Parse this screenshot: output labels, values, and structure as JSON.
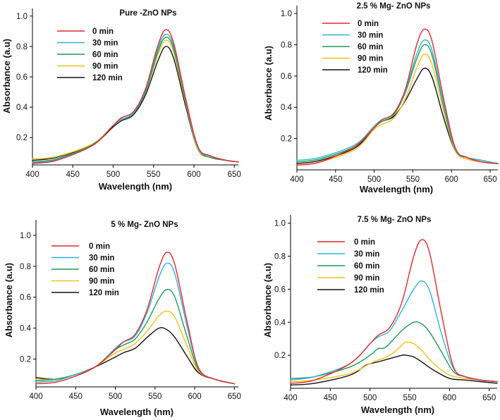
{
  "series_colors": {
    "0 min": "#e8262b",
    "30 min": "#2ab6d8",
    "60 min": "#1f9a55",
    "90 min": "#f2c01a",
    "120 min": "#111111"
  },
  "chart_data": [
    {
      "type": "line",
      "title": "Pure -ZnO NPs",
      "xlabel": "Wavelength (nm)",
      "ylabel": "Absorbance (a.u)",
      "xlim": [
        400,
        655
      ],
      "ylim": [
        0.02,
        1.05
      ],
      "xticks": [
        400,
        450,
        500,
        550,
        600,
        650
      ],
      "yticks": [
        0.2,
        0.4,
        0.6,
        0.8,
        1.0
      ],
      "ytick_labels": [
        "0.2",
        "0.4",
        "0.6",
        "0.8",
        "1.0"
      ],
      "legend": "top-left",
      "series": [
        {
          "name": "0 min",
          "x": [
            400,
            430,
            475,
            500,
            510,
            525,
            540,
            555,
            565,
            575,
            590,
            605,
            620,
            640,
            655
          ],
          "y": [
            0.03,
            0.05,
            0.15,
            0.28,
            0.33,
            0.37,
            0.52,
            0.8,
            0.91,
            0.82,
            0.45,
            0.14,
            0.08,
            0.05,
            0.04
          ]
        },
        {
          "name": "30 min",
          "x": [
            400,
            430,
            475,
            500,
            510,
            525,
            540,
            555,
            565,
            575,
            590,
            605,
            620,
            640,
            655
          ],
          "y": [
            0.035,
            0.055,
            0.15,
            0.28,
            0.32,
            0.36,
            0.51,
            0.78,
            0.88,
            0.8,
            0.44,
            0.13,
            0.08,
            0.05,
            0.04
          ]
        },
        {
          "name": "60 min",
          "x": [
            400,
            430,
            475,
            500,
            510,
            525,
            540,
            555,
            565,
            575,
            590,
            605,
            620,
            640,
            655
          ],
          "y": [
            0.04,
            0.06,
            0.155,
            0.28,
            0.32,
            0.36,
            0.5,
            0.76,
            0.86,
            0.78,
            0.43,
            0.13,
            0.07,
            0.05,
            0.04
          ]
        },
        {
          "name": "90 min",
          "x": [
            400,
            430,
            475,
            500,
            510,
            525,
            540,
            555,
            565,
            575,
            590,
            605,
            620,
            640,
            655
          ],
          "y": [
            0.06,
            0.075,
            0.16,
            0.28,
            0.32,
            0.36,
            0.5,
            0.74,
            0.84,
            0.76,
            0.42,
            0.12,
            0.07,
            0.05,
            0.04
          ]
        },
        {
          "name": "120 min",
          "x": [
            400,
            430,
            475,
            500,
            510,
            525,
            540,
            555,
            565,
            575,
            590,
            605,
            620,
            640,
            655
          ],
          "y": [
            0.05,
            0.07,
            0.155,
            0.27,
            0.31,
            0.35,
            0.48,
            0.7,
            0.8,
            0.72,
            0.4,
            0.12,
            0.07,
            0.05,
            0.04
          ]
        }
      ]
    },
    {
      "type": "line",
      "title": "2.5 % Mg- ZnO NPs",
      "xlabel": "Wavelength (nm)",
      "ylabel": "Absorbance (a.u)",
      "xlim": [
        400,
        660
      ],
      "ylim": [
        0.0,
        1.05
      ],
      "xticks": [
        400,
        450,
        500,
        550,
        600,
        650
      ],
      "yticks": [
        0.2,
        0.4,
        0.6,
        0.8,
        1.0
      ],
      "ytick_labels": [
        "0.2",
        "0.4",
        "0.6",
        "0.8",
        "1.0"
      ],
      "legend": "top-left",
      "series": [
        {
          "name": "0 min",
          "x": [
            400,
            430,
            475,
            500,
            510,
            525,
            540,
            555,
            565,
            575,
            590,
            605,
            620,
            640,
            660
          ],
          "y": [
            0.03,
            0.05,
            0.15,
            0.27,
            0.32,
            0.36,
            0.51,
            0.8,
            0.9,
            0.82,
            0.45,
            0.14,
            0.08,
            0.05,
            0.04
          ]
        },
        {
          "name": "30 min",
          "x": [
            400,
            430,
            475,
            500,
            510,
            525,
            540,
            555,
            565,
            575,
            590,
            605,
            620,
            640,
            660
          ],
          "y": [
            0.06,
            0.08,
            0.16,
            0.28,
            0.32,
            0.36,
            0.5,
            0.74,
            0.83,
            0.76,
            0.42,
            0.13,
            0.08,
            0.06,
            0.04
          ]
        },
        {
          "name": "60 min",
          "x": [
            400,
            430,
            475,
            500,
            510,
            525,
            540,
            555,
            565,
            575,
            590,
            605,
            620,
            640,
            660
          ],
          "y": [
            0.05,
            0.07,
            0.15,
            0.27,
            0.31,
            0.35,
            0.49,
            0.71,
            0.8,
            0.73,
            0.4,
            0.13,
            0.08,
            0.06,
            0.04
          ]
        },
        {
          "name": "90 min",
          "x": [
            400,
            430,
            475,
            500,
            510,
            525,
            540,
            555,
            565,
            575,
            590,
            605,
            620,
            640,
            660
          ],
          "y": [
            0.03,
            0.05,
            0.13,
            0.26,
            0.29,
            0.33,
            0.45,
            0.65,
            0.74,
            0.67,
            0.37,
            0.12,
            0.07,
            0.05,
            0.04
          ]
        },
        {
          "name": "120 min",
          "x": [
            400,
            430,
            475,
            500,
            510,
            525,
            540,
            555,
            565,
            575,
            590,
            605,
            620,
            640,
            660
          ],
          "y": [
            0.04,
            0.06,
            0.14,
            0.27,
            0.31,
            0.34,
            0.44,
            0.58,
            0.65,
            0.59,
            0.33,
            0.12,
            0.07,
            0.05,
            0.04
          ]
        }
      ]
    },
    {
      "type": "line",
      "title": "5 % Mg- ZnO NPs",
      "xlabel": "Wavelength (nm)",
      "ylabel": "Absorbance (a.u)",
      "xlim": [
        400,
        655
      ],
      "ylim": [
        0.02,
        1.1
      ],
      "xticks": [
        400,
        450,
        500,
        550,
        600,
        650
      ],
      "yticks": [
        0.2,
        0.4,
        0.6,
        0.8,
        1.0
      ],
      "ytick_labels": [
        "0.2",
        "0.4",
        "0.6",
        "0.8",
        "1.0"
      ],
      "legend": "top-left",
      "series": [
        {
          "name": "0 min",
          "x": [
            400,
            425,
            450,
            475,
            500,
            510,
            525,
            540,
            555,
            565,
            575,
            590,
            605,
            625,
            650
          ],
          "y": [
            0.04,
            0.05,
            0.09,
            0.15,
            0.26,
            0.31,
            0.36,
            0.52,
            0.79,
            0.89,
            0.81,
            0.45,
            0.14,
            0.07,
            0.04
          ]
        },
        {
          "name": "30 min",
          "x": [
            400,
            425,
            450,
            475,
            500,
            510,
            525,
            540,
            555,
            565,
            575,
            590,
            605,
            625,
            650
          ],
          "y": [
            0.05,
            0.06,
            0.1,
            0.15,
            0.27,
            0.31,
            0.35,
            0.5,
            0.73,
            0.82,
            0.75,
            0.42,
            0.14,
            0.07,
            0.04
          ]
        },
        {
          "name": "60 min",
          "x": [
            400,
            425,
            450,
            475,
            500,
            510,
            525,
            540,
            555,
            565,
            575,
            590,
            605,
            625,
            650
          ],
          "y": [
            0.06,
            0.07,
            0.1,
            0.15,
            0.26,
            0.29,
            0.33,
            0.44,
            0.59,
            0.65,
            0.6,
            0.35,
            0.13,
            0.07,
            0.04
          ]
        },
        {
          "name": "90 min",
          "x": [
            400,
            425,
            450,
            475,
            500,
            510,
            525,
            540,
            555,
            565,
            575,
            590,
            605,
            625,
            650
          ],
          "y": [
            0.07,
            0.07,
            0.1,
            0.15,
            0.24,
            0.26,
            0.3,
            0.38,
            0.48,
            0.51,
            0.47,
            0.29,
            0.12,
            0.07,
            0.04
          ]
        },
        {
          "name": "120 min",
          "x": [
            400,
            425,
            450,
            475,
            495,
            510,
            525,
            540,
            555,
            565,
            575,
            590,
            605,
            625,
            650
          ],
          "y": [
            0.08,
            0.07,
            0.1,
            0.15,
            0.2,
            0.24,
            0.27,
            0.34,
            0.4,
            0.39,
            0.34,
            0.22,
            0.11,
            0.07,
            0.04
          ]
        }
      ]
    },
    {
      "type": "line",
      "title": "7.5 % Mg- ZnO NPs",
      "xlabel": "Wavelength (nm)",
      "ylabel": "Absorbance (a.u)",
      "xlim": [
        400,
        660
      ],
      "ylim": [
        0.0,
        1.05
      ],
      "xticks": [
        400,
        450,
        500,
        550,
        600,
        650
      ],
      "yticks": [
        0.2,
        0.4,
        0.6,
        0.8,
        1.0
      ],
      "ytick_labels": [
        "0.2",
        "0.4",
        "0.6",
        "0.8",
        "1.0"
      ],
      "legend": "top-left",
      "series": [
        {
          "name": "0 min",
          "x": [
            400,
            430,
            475,
            500,
            510,
            525,
            540,
            555,
            565,
            575,
            590,
            605,
            620,
            640,
            660
          ],
          "y": [
            0.03,
            0.05,
            0.15,
            0.27,
            0.32,
            0.37,
            0.52,
            0.8,
            0.9,
            0.82,
            0.45,
            0.13,
            0.07,
            0.05,
            0.04
          ]
        },
        {
          "name": "30 min",
          "x": [
            400,
            430,
            475,
            500,
            510,
            525,
            540,
            555,
            565,
            575,
            590,
            605,
            620,
            640,
            660
          ],
          "y": [
            0.05,
            0.07,
            0.15,
            0.27,
            0.31,
            0.35,
            0.47,
            0.6,
            0.65,
            0.59,
            0.33,
            0.12,
            0.07,
            0.05,
            0.04
          ]
        },
        {
          "name": "60 min",
          "x": [
            400,
            430,
            475,
            500,
            510,
            520,
            540,
            555,
            565,
            575,
            590,
            605,
            620,
            640,
            660
          ],
          "y": [
            0.06,
            0.07,
            0.13,
            0.2,
            0.24,
            0.25,
            0.35,
            0.4,
            0.39,
            0.34,
            0.22,
            0.1,
            0.07,
            0.05,
            0.04
          ]
        },
        {
          "name": "90 min",
          "x": [
            400,
            430,
            475,
            500,
            510,
            525,
            540,
            545,
            555,
            565,
            580,
            600,
            620,
            640,
            660
          ],
          "y": [
            0.04,
            0.05,
            0.09,
            0.15,
            0.17,
            0.2,
            0.26,
            0.28,
            0.27,
            0.23,
            0.15,
            0.08,
            0.06,
            0.05,
            0.04
          ]
        },
        {
          "name": "120 min",
          "x": [
            400,
            430,
            475,
            495,
            510,
            525,
            540,
            545,
            555,
            565,
            580,
            600,
            620,
            640,
            660
          ],
          "y": [
            0.02,
            0.03,
            0.08,
            0.14,
            0.16,
            0.18,
            0.2,
            0.2,
            0.19,
            0.16,
            0.11,
            0.06,
            0.05,
            0.04,
            0.03
          ]
        }
      ]
    }
  ]
}
